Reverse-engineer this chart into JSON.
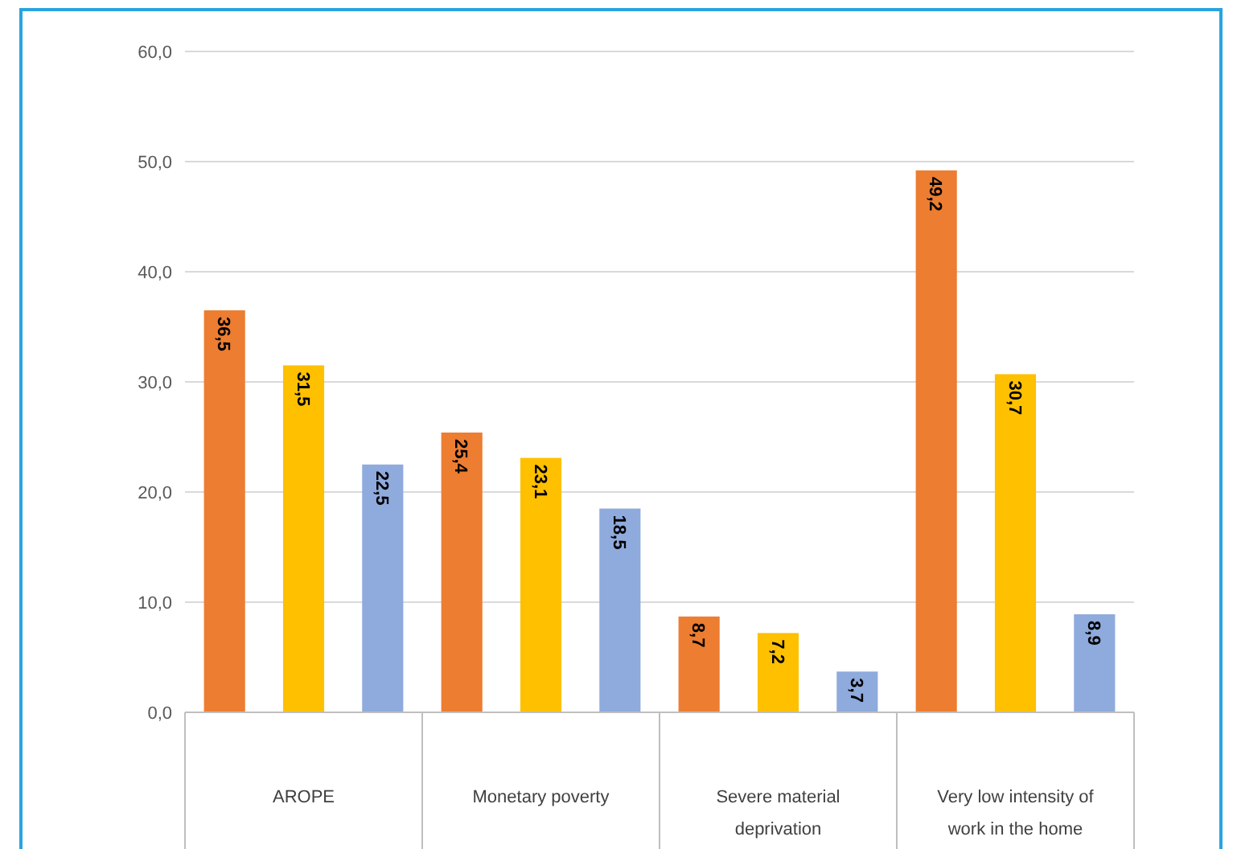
{
  "chart_data": {
    "type": "bar",
    "categories": [
      "AROPE",
      "Monetary poverty",
      "Severe material deprivation",
      "Very low intensity of work in the home"
    ],
    "series": [
      {
        "color": "#ed7d31",
        "values": [
          36.5,
          25.4,
          8.7,
          49.2
        ],
        "value_labels": [
          "36,5",
          "25,4",
          "8,7",
          "49,2"
        ]
      },
      {
        "color": "#ffc000",
        "values": [
          31.5,
          23.1,
          7.2,
          30.7
        ],
        "value_labels": [
          "31,5",
          "23,1",
          "7,2",
          "30,7"
        ]
      },
      {
        "color": "#8faadc",
        "values": [
          22.5,
          18.5,
          3.7,
          8.9
        ],
        "value_labels": [
          "22,5",
          "18,5",
          "3,7",
          "8,9"
        ]
      }
    ],
    "ylim": [
      0,
      60
    ],
    "yticks": [
      {
        "value": 0,
        "label": "0,0"
      },
      {
        "value": 10,
        "label": "10,0"
      },
      {
        "value": 20,
        "label": "20,0"
      },
      {
        "value": 30,
        "label": "30,0"
      },
      {
        "value": 40,
        "label": "40,0"
      },
      {
        "value": 50,
        "label": "50,0"
      },
      {
        "value": 60,
        "label": "60,0"
      }
    ],
    "grid": "y"
  }
}
